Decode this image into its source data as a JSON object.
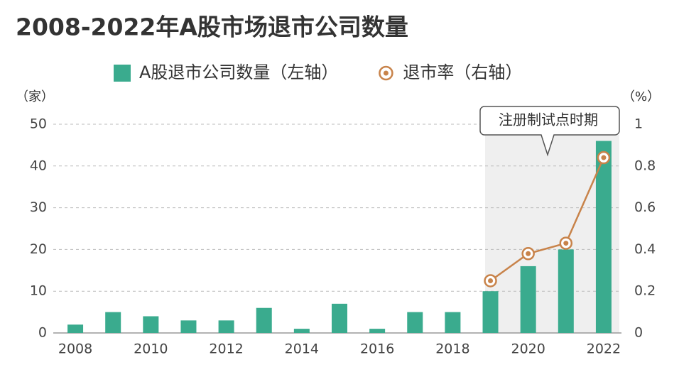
{
  "chart_data": {
    "type": "bar",
    "title": "2008-2022年A股市场退市公司数量",
    "categories": [
      "2008",
      null,
      "2010",
      null,
      "2012",
      null,
      "2014",
      null,
      "2016",
      null,
      "2018",
      null,
      "2020",
      null,
      "2022"
    ],
    "series": [
      {
        "name": "A股退市公司数量（左轴）",
        "color": "#3aab8e",
        "type": "bar",
        "values": [
          2,
          5,
          4,
          3,
          3,
          6,
          1,
          7,
          1,
          5,
          5,
          10,
          16,
          20,
          46
        ]
      },
      {
        "name": "退市率（右轴）",
        "color": "#c8834a",
        "type": "line",
        "axis": "y2",
        "values": [
          null,
          null,
          null,
          null,
          null,
          null,
          null,
          null,
          null,
          null,
          null,
          0.25,
          0.38,
          0.43,
          0.84
        ]
      }
    ],
    "ylabel": "（家）",
    "y2label": "（%）",
    "ylim": [
      0,
      50
    ],
    "yticks": [
      0,
      10,
      20,
      30,
      40,
      50
    ],
    "y2lim": [
      0,
      1
    ],
    "y2ticks": [
      0,
      0.2,
      0.4,
      0.6,
      0.8,
      1
    ],
    "annotation": "注册制试点时期",
    "grid": true
  }
}
